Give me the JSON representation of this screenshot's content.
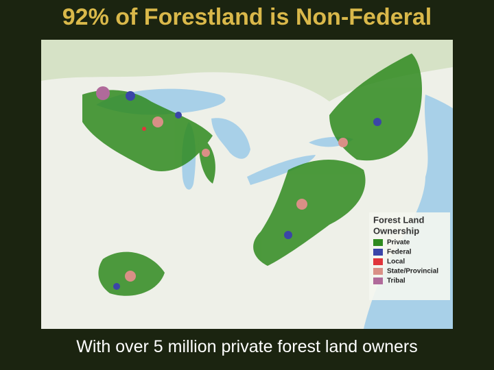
{
  "title": "92% of Forestland is Non-Federal",
  "caption": "With over 5 million private forest land owners",
  "legend": {
    "title": [
      "Forest Land",
      "Ownership"
    ],
    "items": [
      {
        "label": "Private",
        "color": "#2f8a1f"
      },
      {
        "label": "Federal",
        "color": "#3b45a8"
      },
      {
        "label": "Local",
        "color": "#e0353b"
      },
      {
        "label": "State/Provincial",
        "color": "#d98f86"
      },
      {
        "label": "Tribal",
        "color": "#b06a9a"
      }
    ]
  }
}
